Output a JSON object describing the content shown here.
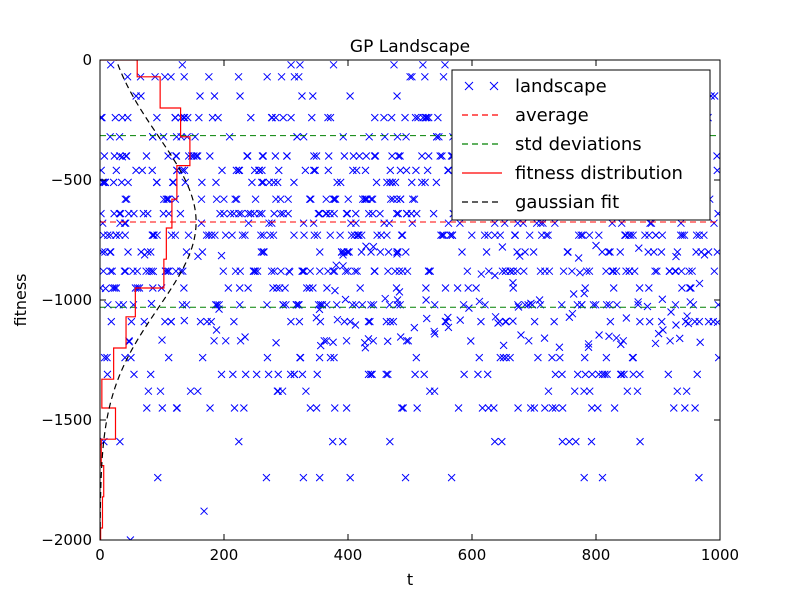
{
  "chart_data": {
    "type": "scatter",
    "title": "GP Landscape",
    "xlabel": "t",
    "ylabel": "fitness",
    "xlim": [
      0,
      1000
    ],
    "ylim": [
      -2000,
      0
    ],
    "xticks": [
      "0",
      "200",
      "400",
      "600",
      "800",
      "1000"
    ],
    "yticks": [
      "0",
      "−500",
      "−1000",
      "−1500",
      "−2000"
    ],
    "grid": false,
    "legend_position": "top-right",
    "series": [
      {
        "name": "landscape",
        "marker": "x",
        "color": "#0000ff",
        "levels": [
          -20,
          -70,
          -150,
          -240,
          -320,
          -400,
          -460,
          -510,
          -580,
          -640,
          -680,
          -730,
          -800,
          -880,
          -950,
          -1020,
          -1090,
          -1170,
          -1240,
          -1310,
          -1380,
          -1450,
          -1590,
          -1740,
          -1880
        ],
        "level_weights": [
          3,
          6,
          10,
          14,
          14,
          16,
          18,
          18,
          22,
          18,
          12,
          20,
          14,
          20,
          10,
          16,
          8,
          9,
          6,
          8,
          5,
          8,
          4,
          3,
          1
        ],
        "num_points": 1000,
        "x": [
          9,
          36,
          47,
          49,
          72,
          83,
          86,
          100,
          103,
          136,
          158,
          184,
          188,
          192,
          196,
          234,
          284,
          306,
          349,
          354,
          356,
          376,
          379,
          381,
          383,
          392,
          392,
          396,
          412,
          427,
          428,
          429,
          433,
          441,
          460,
          464,
          479,
          480,
          483,
          485,
          507,
          526,
          527,
          539,
          540,
          557,
          561,
          562,
          581,
          595,
          598,
          612,
          615,
          637,
          638,
          642,
          649,
          651,
          666,
          666,
          674,
          675,
          677,
          679,
          695,
          709,
          717,
          741,
          757,
          762,
          764,
          772,
          774,
          781,
          788,
          788,
          800,
          805,
          821,
          833,
          840,
          849,
          868,
          869,
          883,
          896,
          901,
          907,
          908,
          921,
          929,
          929,
          935,
          947,
          949,
          952,
          967,
          968,
          975,
          996
        ],
        "y": [
          -952,
          -403,
          -1174,
          -2000,
          -812,
          -1015,
          -881,
          -1167,
          -581,
          -1086,
          -818,
          -1170,
          -1125,
          -1038,
          -815,
          -1154,
          -1178,
          -883,
          -1074,
          -1039,
          -1190,
          -1176,
          -961,
          -855,
          -1082,
          -858,
          -812,
          -998,
          -1104,
          -1178,
          -1199,
          -776,
          -1162,
          -778,
          -994,
          -1172,
          -808,
          -1000,
          -966,
          -1154,
          -1115,
          -1000,
          -1077,
          -1131,
          -1141,
          -1089,
          -1073,
          -1114,
          -1084,
          -1034,
          -1171,
          -1006,
          -892,
          -898,
          -1070,
          -1096,
          -779,
          -1189,
          -928,
          -1088,
          -1020,
          -1029,
          -817,
          -1146,
          -1014,
          -1000,
          -1159,
          -1197,
          -1072,
          -1057,
          -975,
          -825,
          -886,
          -973,
          -1183,
          -1197,
          -773,
          -1146,
          -1151,
          -1158,
          -1185,
          -1075,
          -1008,
          -784,
          -1027,
          -1181,
          -1140,
          -997,
          -1125,
          -1050,
          -819,
          -1104,
          -1160,
          -1067,
          -1098,
          -1008,
          -931,
          -1176,
          -812,
          -1093
        ]
      },
      {
        "name": "average",
        "type": "hline",
        "style": "dashed",
        "color": "#ff0000",
        "y": -675
      },
      {
        "name": "std deviations",
        "type": "hline",
        "style": "dashed",
        "color": "#008000",
        "y": [
          -315,
          -1030
        ]
      },
      {
        "name": "fitness distribution",
        "type": "step",
        "color": "#ff0000",
        "bin_edges": [
          -2000,
          -1950,
          -1820,
          -1690,
          -1580,
          -1450,
          -1330,
          -1200,
          -1070,
          -950,
          -830,
          -700,
          -580,
          -440,
          -320,
          -200,
          -70,
          0
        ],
        "counts": [
          1,
          4,
          6,
          2,
          25,
          3,
          22,
          42,
          57,
          103,
          107,
          116,
          124,
          145,
          130,
          97,
          60
        ]
      },
      {
        "name": "gaussian fit",
        "type": "curve",
        "style": "dashed",
        "color": "#000000",
        "mean": -675,
        "std": 358,
        "peak": 155,
        "y_range": [
          -1950,
          0
        ]
      }
    ]
  }
}
